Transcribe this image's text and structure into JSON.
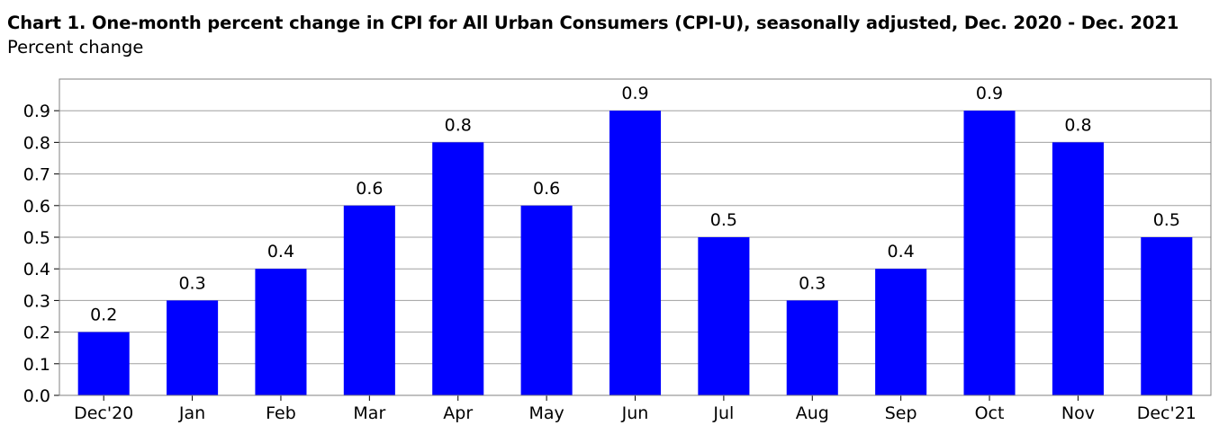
{
  "chart_data": {
    "type": "bar",
    "title": "Chart 1. One-month percent change in CPI for All Urban Consumers (CPI-U), seasonally adjusted, Dec. 2020 - Dec. 2021",
    "ylabel": "Percent change",
    "xlabel": "",
    "categories": [
      "Dec'20",
      "Jan",
      "Feb",
      "Mar",
      "Apr",
      "May",
      "Jun",
      "Jul",
      "Aug",
      "Sep",
      "Oct",
      "Nov",
      "Dec'21"
    ],
    "values": [
      0.2,
      0.3,
      0.4,
      0.6,
      0.8,
      0.6,
      0.9,
      0.5,
      0.3,
      0.4,
      0.9,
      0.8,
      0.5
    ],
    "data_labels": [
      "0.2",
      "0.3",
      "0.4",
      "0.6",
      "0.8",
      "0.6",
      "0.9",
      "0.5",
      "0.3",
      "0.4",
      "0.9",
      "0.8",
      "0.5"
    ],
    "ylim": [
      0,
      1.0
    ],
    "yticks": [
      "0.0",
      "0.1",
      "0.2",
      "0.3",
      "0.4",
      "0.5",
      "0.6",
      "0.7",
      "0.8",
      "0.9"
    ],
    "grid": true,
    "bar_color": "#0000ff",
    "grid_color": "#a0a0a0"
  }
}
